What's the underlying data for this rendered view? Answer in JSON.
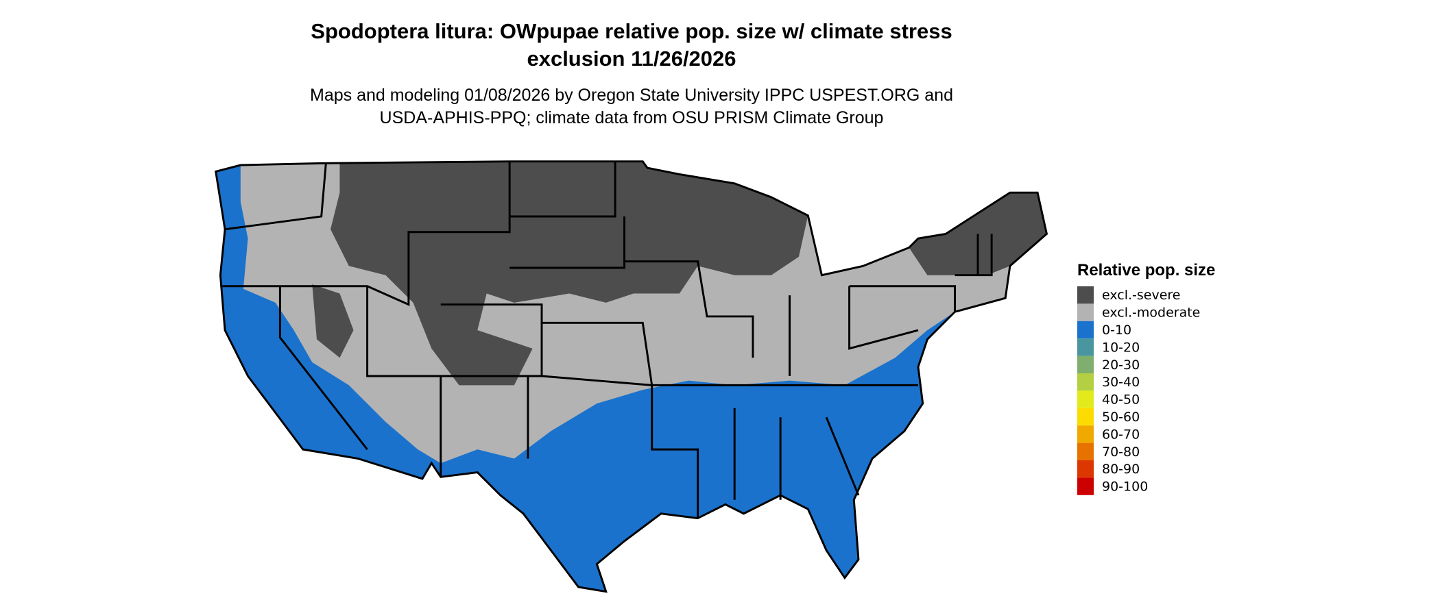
{
  "title": [
    "Spodoptera litura: OWpupae relative pop. size w/ climate stress",
    "exclusion 11/26/2026"
  ],
  "subtitle": [
    "Maps and modeling 01/08/2026 by Oregon State University IPPC USPEST.ORG and",
    "USDA-APHIS-PPQ; climate data from OSU PRISM Climate Group"
  ],
  "legend": {
    "title": "Relative pop. size",
    "items": [
      {
        "label": "excl.-severe",
        "color": "#4d4d4d"
      },
      {
        "label": "excl.-moderate",
        "color": "#b3b3b3"
      },
      {
        "label": "0-10",
        "color": "#1a72cc"
      },
      {
        "label": "10-20",
        "color": "#4a96a0"
      },
      {
        "label": "20-30",
        "color": "#7fae6e"
      },
      {
        "label": "30-40",
        "color": "#b4cf42"
      },
      {
        "label": "40-50",
        "color": "#e2ea1c"
      },
      {
        "label": "50-60",
        "color": "#fcdc00"
      },
      {
        "label": "60-70",
        "color": "#f0a900"
      },
      {
        "label": "70-80",
        "color": "#e87200"
      },
      {
        "label": "80-90",
        "color": "#dc3700"
      },
      {
        "label": "90-100",
        "color": "#cc0000"
      }
    ]
  }
}
